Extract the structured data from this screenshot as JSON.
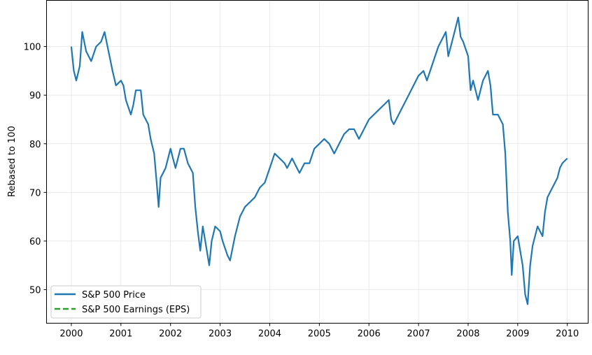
{
  "chart_data": {
    "type": "line",
    "title": "",
    "xlabel": "",
    "ylabel": "Rebased to 100",
    "xlim": [
      1999.5,
      2010.42
    ],
    "ylim": [
      43.1,
      109.5
    ],
    "grid": true,
    "legend_placement": "lower-left",
    "x_ticks": [
      "2000",
      "2001",
      "2002",
      "2003",
      "2004",
      "2005",
      "2006",
      "2007",
      "2008",
      "2009",
      "2010"
    ],
    "y_ticks": [
      "50",
      "60",
      "70",
      "80",
      "90",
      "100"
    ],
    "series": [
      {
        "name": "S&P 500 Price",
        "color": "#1f77b4",
        "style": "solid",
        "x": [
          2000.0,
          2000.05,
          2000.1,
          2000.17,
          2000.22,
          2000.3,
          2000.4,
          2000.5,
          2000.6,
          2000.67,
          2000.75,
          2000.83,
          2000.9,
          2001.0,
          2001.05,
          2001.1,
          2001.2,
          2001.25,
          2001.3,
          2001.4,
          2001.45,
          2001.55,
          2001.6,
          2001.67,
          2001.72,
          2001.76,
          2001.8,
          2001.9,
          2002.0,
          2002.05,
          2002.1,
          2002.2,
          2002.27,
          2002.35,
          2002.45,
          2002.5,
          2002.55,
          2002.6,
          2002.65,
          2002.7,
          2002.78,
          2002.83,
          2002.9,
          2003.0,
          2003.05,
          2003.15,
          2003.2,
          2003.3,
          2003.4,
          2003.5,
          2003.6,
          2003.7,
          2003.8,
          2003.9,
          2004.0,
          2004.1,
          2004.2,
          2004.3,
          2004.35,
          2004.45,
          2004.55,
          2004.6,
          2004.7,
          2004.8,
          2004.9,
          2005.0,
          2005.1,
          2005.2,
          2005.3,
          2005.4,
          2005.5,
          2005.6,
          2005.7,
          2005.8,
          2005.9,
          2006.0,
          2006.1,
          2006.2,
          2006.3,
          2006.4,
          2006.45,
          2006.5,
          2006.6,
          2006.7,
          2006.8,
          2006.9,
          2007.0,
          2007.1,
          2007.17,
          2007.3,
          2007.4,
          2007.5,
          2007.55,
          2007.6,
          2007.65,
          2007.75,
          2007.8,
          2007.85,
          2007.9,
          2008.0,
          2008.05,
          2008.1,
          2008.2,
          2008.3,
          2008.4,
          2008.45,
          2008.5,
          2008.6,
          2008.7,
          2008.75,
          2008.8,
          2008.85,
          2008.88,
          2008.92,
          2009.0,
          2009.05,
          2009.1,
          2009.15,
          2009.2,
          2009.25,
          2009.3,
          2009.4,
          2009.5,
          2009.55,
          2009.6,
          2009.7,
          2009.8,
          2009.85,
          2009.9,
          2010.0
        ],
        "values": [
          100,
          95,
          93,
          96,
          103,
          99,
          97,
          100,
          101,
          103,
          99,
          95,
          92,
          93,
          92,
          89,
          86,
          88,
          91,
          91,
          86,
          84,
          81,
          78,
          72,
          67,
          73,
          75,
          79,
          77,
          75,
          79,
          79,
          76,
          74,
          67,
          62,
          58,
          63,
          60,
          55,
          60,
          63,
          62,
          60,
          57,
          56,
          61,
          65,
          67,
          68,
          69,
          71,
          72,
          75,
          78,
          77,
          76,
          75,
          77,
          75,
          74,
          76,
          76,
          79,
          80,
          81,
          80,
          78,
          80,
          82,
          83,
          83,
          81,
          83,
          85,
          86,
          87,
          88,
          89,
          85,
          84,
          86,
          88,
          90,
          92,
          94,
          95,
          93,
          97,
          100,
          102,
          103,
          98,
          100,
          104,
          106,
          102,
          101,
          98,
          91,
          93,
          89,
          93,
          95,
          92,
          86,
          86,
          84,
          78,
          66,
          60,
          53,
          60,
          61,
          58,
          55,
          49,
          47,
          55,
          59,
          63,
          61,
          66,
          69,
          71,
          73,
          75,
          76,
          77
        ]
      },
      {
        "name": "S&P 500 Earnings (EPS)",
        "color": "#2ca02c",
        "style": "dashed",
        "x": [],
        "values": []
      }
    ]
  }
}
